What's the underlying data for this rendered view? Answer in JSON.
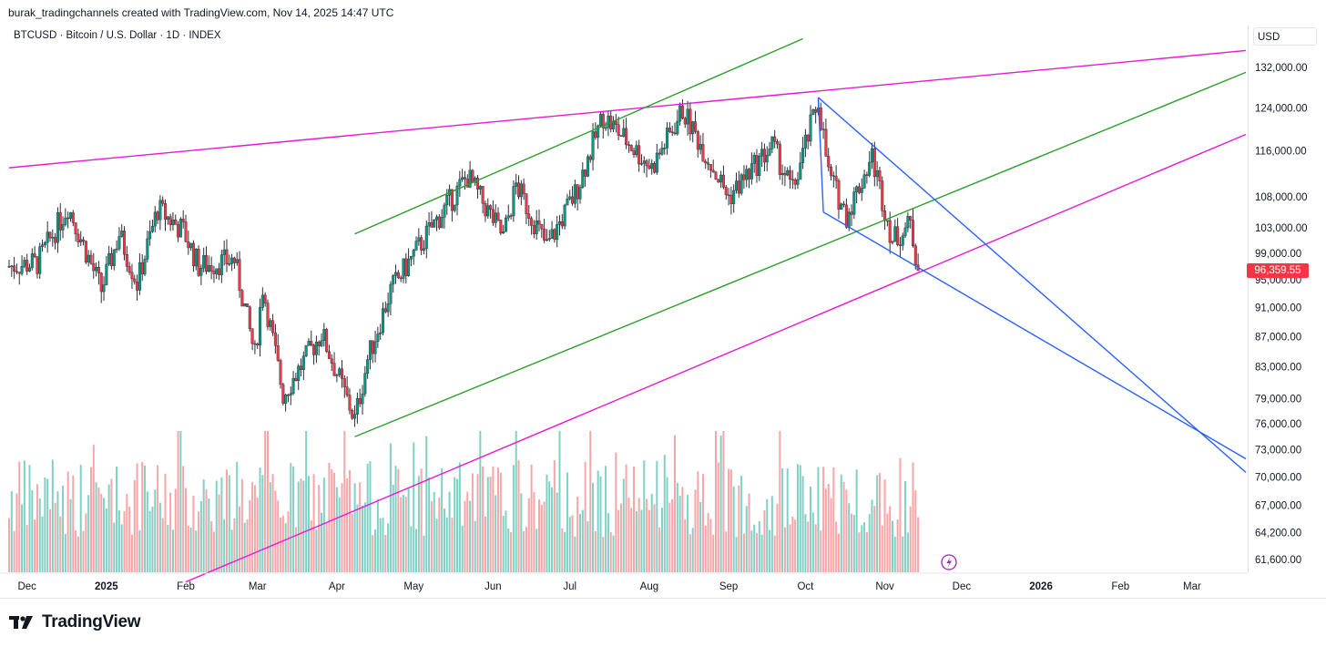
{
  "header": {
    "text": "burak_tradingchannels created with TradingView.com, Nov 14, 2025 14:47 UTC"
  },
  "symbol": {
    "label": "BTCUSD · Bitcoin / U.S. Dollar · 1D · INDEX"
  },
  "price_scale": {
    "currency": "USD",
    "last_price": "96,359.55",
    "last_price_color": "#f23645"
  },
  "footer": {
    "logo_text": "TradingView"
  },
  "colors": {
    "up": "#089981",
    "down": "#f23645",
    "volume_up": "#7fd1c6",
    "volume_down": "#f6a5a8",
    "magenta": "#e619d4",
    "green": "#2e9e2e",
    "blue": "#2962ff"
  },
  "chart_data": {
    "type": "candlestick",
    "title": "",
    "x_range": [
      "2024-11-24",
      "2026-03-22"
    ],
    "y_scale": "log",
    "y_range": [
      59500,
      138000
    ],
    "grid": false,
    "y_ticks": [
      {
        "label": "132,000.00",
        "value": 132000
      },
      {
        "label": "124,000.00",
        "value": 124000
      },
      {
        "label": "116,000.00",
        "value": 116000
      },
      {
        "label": "108,000.00",
        "value": 108000
      },
      {
        "label": "103,000.00",
        "value": 103000
      },
      {
        "label": "99,000.00",
        "value": 99000
      },
      {
        "label": "95,000.00",
        "value": 95000
      },
      {
        "label": "91,000.00",
        "value": 91000
      },
      {
        "label": "87,000.00",
        "value": 87000
      },
      {
        "label": "83,000.00",
        "value": 83000
      },
      {
        "label": "79,000.00",
        "value": 79000
      },
      {
        "label": "76,000.00",
        "value": 76000
      },
      {
        "label": "73,000.00",
        "value": 73000
      },
      {
        "label": "70,000.00",
        "value": 70000
      },
      {
        "label": "67,000.00",
        "value": 67000
      },
      {
        "label": "64,200.00",
        "value": 64200
      },
      {
        "label": "61,600.00",
        "value": 61600
      }
    ],
    "x_ticks": [
      {
        "label": "Dec",
        "date": "2024-12-01",
        "bold": false
      },
      {
        "label": "2025",
        "date": "2025-01-01",
        "bold": true
      },
      {
        "label": "Feb",
        "date": "2025-02-01",
        "bold": false
      },
      {
        "label": "Mar",
        "date": "2025-03-01",
        "bold": false
      },
      {
        "label": "Apr",
        "date": "2025-04-01",
        "bold": false
      },
      {
        "label": "May",
        "date": "2025-05-01",
        "bold": false
      },
      {
        "label": "Jun",
        "date": "2025-06-01",
        "bold": false
      },
      {
        "label": "Jul",
        "date": "2025-07-01",
        "bold": false
      },
      {
        "label": "Aug",
        "date": "2025-08-01",
        "bold": false
      },
      {
        "label": "Sep",
        "date": "2025-09-01",
        "bold": false
      },
      {
        "label": "Oct",
        "date": "2025-10-01",
        "bold": false
      },
      {
        "label": "Nov",
        "date": "2025-11-01",
        "bold": false
      },
      {
        "label": "Dec",
        "date": "2025-12-01",
        "bold": false
      },
      {
        "label": "2026",
        "date": "2026-01-01",
        "bold": true
      },
      {
        "label": "Feb",
        "date": "2026-02-01",
        "bold": false
      },
      {
        "label": "Mar",
        "date": "2026-03-01",
        "bold": false
      }
    ],
    "price_anchors": [
      {
        "date": "2024-11-24",
        "close": 97000
      },
      {
        "date": "2024-12-05",
        "close": 97500
      },
      {
        "date": "2024-12-17",
        "close": 106500
      },
      {
        "date": "2024-12-30",
        "close": 93500
      },
      {
        "date": "2025-01-06",
        "close": 102000
      },
      {
        "date": "2025-01-13",
        "close": 94500
      },
      {
        "date": "2025-01-21",
        "close": 106000
      },
      {
        "date": "2025-01-31",
        "close": 102500
      },
      {
        "date": "2025-02-06",
        "close": 97000
      },
      {
        "date": "2025-02-20",
        "close": 98000
      },
      {
        "date": "2025-02-28",
        "close": 84500
      },
      {
        "date": "2025-03-03",
        "close": 94000
      },
      {
        "date": "2025-03-11",
        "close": 79500
      },
      {
        "date": "2025-03-26",
        "close": 87500
      },
      {
        "date": "2025-04-08",
        "close": 76500
      },
      {
        "date": "2025-04-13",
        "close": 84000
      },
      {
        "date": "2025-04-22",
        "close": 93500
      },
      {
        "date": "2025-05-08",
        "close": 103000
      },
      {
        "date": "2025-05-22",
        "close": 111500
      },
      {
        "date": "2025-06-05",
        "close": 101500
      },
      {
        "date": "2025-06-10",
        "close": 110000
      },
      {
        "date": "2025-06-22",
        "close": 100000
      },
      {
        "date": "2025-07-03",
        "close": 108500
      },
      {
        "date": "2025-07-14",
        "close": 122500
      },
      {
        "date": "2025-08-02",
        "close": 113000
      },
      {
        "date": "2025-08-14",
        "close": 123500
      },
      {
        "date": "2025-09-01",
        "close": 108000
      },
      {
        "date": "2025-09-18",
        "close": 117000
      },
      {
        "date": "2025-09-26",
        "close": 109000
      },
      {
        "date": "2025-10-06",
        "close": 125500
      },
      {
        "date": "2025-10-10",
        "close": 112000
      },
      {
        "date": "2025-10-17",
        "close": 105000
      },
      {
        "date": "2025-10-27",
        "close": 115000
      },
      {
        "date": "2025-11-04",
        "close": 101000
      },
      {
        "date": "2025-11-11",
        "close": 103500
      },
      {
        "date": "2025-11-14",
        "close": 96359.55
      }
    ],
    "trendlines": [
      {
        "name": "magenta-upper",
        "color": "#e619d4",
        "p1": {
          "date": "2024-11-24",
          "price": 113000
        },
        "p2": {
          "date": "2026-03-22",
          "price": 135500
        }
      },
      {
        "name": "magenta-lower",
        "color": "#e619d4",
        "p1": {
          "date": "2025-02-01",
          "price": 59500
        },
        "p2": {
          "date": "2026-03-22",
          "price": 119000
        }
      },
      {
        "name": "green-upper",
        "color": "#2e9e2e",
        "p1": {
          "date": "2025-04-08",
          "price": 102000
        },
        "p2": {
          "date": "2025-09-30",
          "price": 138000
        }
      },
      {
        "name": "green-lower",
        "color": "#2e9e2e",
        "p1": {
          "date": "2025-04-08",
          "price": 74500
        },
        "p2": {
          "date": "2026-03-22",
          "price": 131000
        }
      },
      {
        "name": "blue-upper",
        "color": "#2962ff",
        "p1": {
          "date": "2025-10-06",
          "price": 126000
        },
        "p2": {
          "date": "2026-03-22",
          "price": 70500
        }
      },
      {
        "name": "blue-lower",
        "color": "#2962ff",
        "p1": {
          "date": "2025-10-08",
          "price": 105500
        },
        "p2": {
          "date": "2026-03-22",
          "price": 72000
        }
      },
      {
        "name": "blue-connector",
        "color": "#2962ff",
        "p1": {
          "date": "2025-10-06",
          "price": 126000
        },
        "p2": {
          "date": "2025-10-08",
          "price": 105500
        }
      }
    ]
  }
}
